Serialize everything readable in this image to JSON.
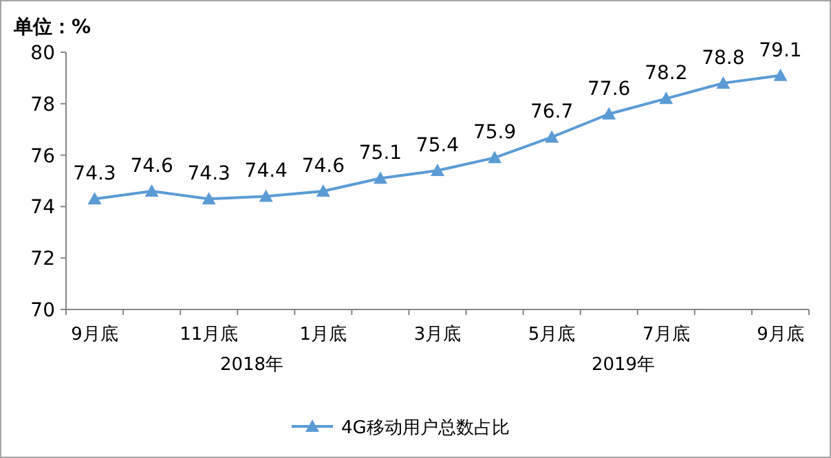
{
  "chart_data": {
    "type": "line",
    "ylabel": "单位：%",
    "categories": [
      "9月底",
      null,
      "11月底",
      null,
      "1月底",
      null,
      "3月底",
      null,
      "5月底",
      null,
      "7月底",
      null,
      "9月底"
    ],
    "series": [
      {
        "name": "4G移动用户总数占比",
        "color": "#5b9bd5",
        "values": [
          74.3,
          74.6,
          74.3,
          74.4,
          74.6,
          75.1,
          75.4,
          75.9,
          76.7,
          77.6,
          78.2,
          78.8,
          79.1
        ]
      }
    ],
    "ylim": [
      70,
      80
    ],
    "yticks": [
      70,
      72,
      74,
      76,
      78,
      80
    ],
    "data_labels": true,
    "marker": "triangle",
    "legend": "bottom",
    "annotations": [
      "2018年",
      "2019年"
    ]
  }
}
